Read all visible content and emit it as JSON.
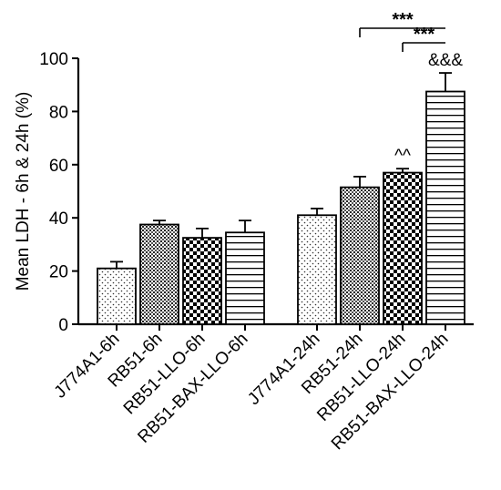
{
  "chart_data": {
    "type": "bar",
    "ylabel": "Mean LDH - 6h & 24h (%)",
    "ylim": [
      0,
      100
    ],
    "yticks": [
      0,
      20,
      40,
      60,
      80,
      100
    ],
    "grid": false,
    "groups": [
      {
        "bars": [
          {
            "category": "J774A1-6h",
            "value": 21,
            "error": 2.5,
            "pattern": "dots-sparse"
          },
          {
            "category": "RB51-6h",
            "value": 37.5,
            "error": 1.5,
            "pattern": "dots-dense"
          },
          {
            "category": "RB51-LLO-6h",
            "value": 32.5,
            "error": 3.5,
            "pattern": "checker"
          },
          {
            "category": "RB51-BAX-LLO-6h",
            "value": 34.5,
            "error": 4.5,
            "pattern": "hlines"
          }
        ]
      },
      {
        "bars": [
          {
            "category": "J774A1-24h",
            "value": 41,
            "error": 2.5,
            "pattern": "dots-sparse"
          },
          {
            "category": "RB51-24h",
            "value": 51.5,
            "error": 4,
            "pattern": "dots-dense",
            "annotation": ""
          },
          {
            "category": "RB51-LLO-24h",
            "value": 57,
            "error": 1.5,
            "pattern": "checker",
            "annotation": "^^"
          },
          {
            "category": "RB51-BAX-LLO-24h",
            "value": 87.5,
            "error": 7,
            "pattern": "hlines",
            "annotation": "&&&"
          }
        ]
      }
    ],
    "significance": [
      {
        "from": "RB51-24h",
        "to": "RB51-BAX-LLO-24h",
        "label": "***"
      },
      {
        "from": "RB51-LLO-24h",
        "to": "RB51-BAX-LLO-24h",
        "label": "***"
      }
    ]
  }
}
